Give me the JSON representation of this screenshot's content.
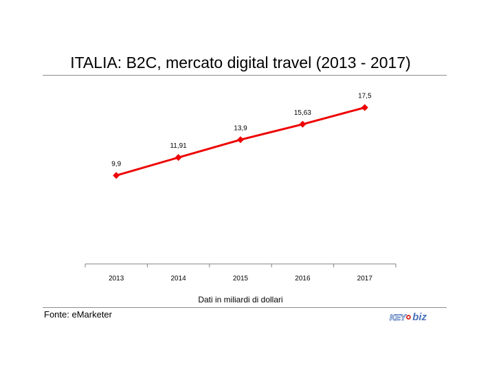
{
  "title": "ITALIA: B2C, mercato digital travel (2013 - 2017)",
  "source": "Fonte: eMarketer",
  "logo_text": "KEY4biz",
  "colors": {
    "series": "#ee0000",
    "axis": "#808080",
    "rule": "#8c8c8c",
    "logo_blue": "#4a72b8",
    "logo_red": "#d9352a"
  },
  "chart_data": {
    "type": "line",
    "categories": [
      "2013",
      "2014",
      "2015",
      "2016",
      "2017"
    ],
    "series": [
      {
        "name": "",
        "values": [
          9.9,
          11.91,
          13.9,
          15.63,
          17.5
        ],
        "labels": [
          "9,9",
          "11,91",
          "13,9",
          "15,63",
          "17,5"
        ],
        "marker": "diamond"
      }
    ],
    "title": "ITALIA: B2C, mercato digital travel (2013 - 2017)",
    "xlabel": "Dati in miliardi di dollari",
    "ylabel": "",
    "ylim": [
      0,
      20
    ],
    "grid": false,
    "legend": "none"
  }
}
